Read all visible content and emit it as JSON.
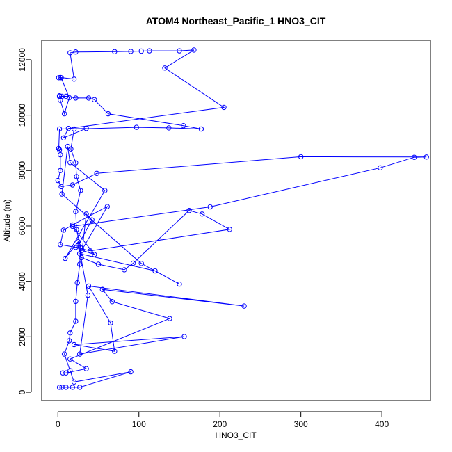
{
  "chart_data": {
    "type": "line",
    "title": "ATOM4 Northeast_Pacific_1 HNO3_CIT",
    "xlabel": "HNO3_CIT",
    "ylabel": "Altitude (m)",
    "xlim": [
      -20,
      460
    ],
    "ylim": [
      -300,
      12700
    ],
    "x_ticks": [
      0,
      100,
      200,
      300,
      400
    ],
    "y_ticks": [
      0,
      2000,
      4000,
      6000,
      8000,
      10000,
      12000
    ],
    "grid": false,
    "legend": "none",
    "marker": "open-circle",
    "series": [
      {
        "color": "#0000ff",
        "points": [
          [
            2,
            180
          ],
          [
            5,
            180
          ],
          [
            10,
            180
          ],
          [
            18,
            180
          ],
          [
            27,
            180
          ],
          [
            90,
            740
          ],
          [
            20,
            370
          ],
          [
            15,
            780
          ],
          [
            8,
            1380
          ],
          [
            14,
            1860
          ],
          [
            15,
            2140
          ],
          [
            22,
            2560
          ],
          [
            22,
            3280
          ],
          [
            24,
            3950
          ],
          [
            27,
            4620
          ],
          [
            28,
            5210
          ],
          [
            23,
            5870
          ],
          [
            22,
            6520
          ],
          [
            28,
            7280
          ],
          [
            23,
            7780
          ],
          [
            22,
            8280
          ],
          [
            16,
            8780
          ],
          [
            20,
            9500
          ],
          [
            97,
            9560
          ],
          [
            137,
            9540
          ],
          [
            177,
            9500
          ],
          [
            155,
            9620
          ],
          [
            62,
            10050
          ],
          [
            45,
            10560
          ],
          [
            38,
            10620
          ],
          [
            22,
            10620
          ],
          [
            10,
            10680
          ],
          [
            5,
            10680
          ],
          [
            2,
            10670
          ],
          [
            2,
            10700
          ],
          [
            3,
            10540
          ],
          [
            8,
            10050
          ],
          [
            14,
            10630
          ],
          [
            4,
            11350
          ],
          [
            1,
            11350
          ],
          [
            3,
            11360
          ],
          [
            20,
            11300
          ],
          [
            15,
            12250
          ],
          [
            22,
            12280
          ],
          [
            70,
            12290
          ],
          [
            90,
            12300
          ],
          [
            103,
            12310
          ],
          [
            113,
            12320
          ],
          [
            150,
            12320
          ],
          [
            168,
            12350
          ],
          [
            132,
            11700
          ],
          [
            205,
            10280
          ],
          [
            13,
            9520
          ],
          [
            7,
            9180
          ],
          [
            35,
            9520
          ],
          [
            2,
            9500
          ],
          [
            1,
            8800
          ],
          [
            2,
            8750
          ],
          [
            3,
            8570
          ],
          [
            3,
            8000
          ],
          [
            0,
            7640
          ],
          [
            4,
            7420
          ],
          [
            18,
            7480
          ],
          [
            48,
            7900
          ],
          [
            300,
            8500
          ],
          [
            455,
            8490
          ],
          [
            440,
            8480
          ],
          [
            398,
            8100
          ],
          [
            188,
            6690
          ],
          [
            18,
            5990
          ],
          [
            45,
            4970
          ],
          [
            30,
            5120
          ],
          [
            35,
            6430
          ],
          [
            42,
            6220
          ],
          [
            25,
            5300
          ],
          [
            29,
            4860
          ],
          [
            50,
            4620
          ],
          [
            82,
            4420
          ],
          [
            93,
            4660
          ],
          [
            162,
            6560
          ],
          [
            178,
            6430
          ],
          [
            212,
            5880
          ],
          [
            40,
            5100
          ],
          [
            22,
            5230
          ],
          [
            3,
            5330
          ],
          [
            7,
            5850
          ],
          [
            18,
            6040
          ],
          [
            61,
            6700
          ],
          [
            27,
            5000
          ],
          [
            120,
            4380
          ],
          [
            150,
            3900
          ],
          [
            103,
            4650
          ],
          [
            5,
            7150
          ],
          [
            12,
            8870
          ],
          [
            15,
            8290
          ],
          [
            58,
            7280
          ],
          [
            9,
            4830
          ],
          [
            25,
            5430
          ],
          [
            37,
            3500
          ],
          [
            27,
            1380
          ],
          [
            156,
            2010
          ],
          [
            20,
            1720
          ],
          [
            70,
            1480
          ],
          [
            65,
            2500
          ],
          [
            38,
            3830
          ],
          [
            230,
            3110
          ],
          [
            55,
            3710
          ],
          [
            67,
            3270
          ],
          [
            138,
            2660
          ],
          [
            15,
            1200
          ],
          [
            35,
            850
          ],
          [
            10,
            700
          ],
          [
            6,
            700
          ]
        ]
      }
    ]
  }
}
